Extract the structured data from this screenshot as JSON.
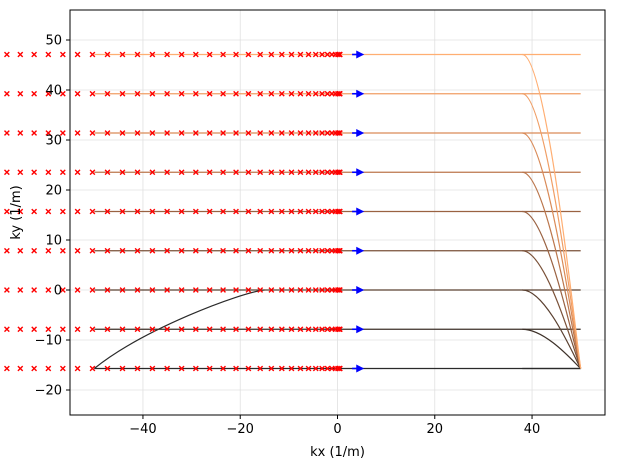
{
  "chart_data": {
    "type": "line",
    "xlabel": "kx (1/m)",
    "ylabel": "ky (1/m)",
    "xlim": [
      -55,
      55
    ],
    "ylim": [
      -25,
      56
    ],
    "x_ticks": [
      -40,
      -20,
      0,
      20,
      40
    ],
    "y_ticks": [
      -20,
      -10,
      0,
      10,
      20,
      30,
      40,
      50
    ],
    "grid": true,
    "line_ky": [
      -15.7,
      -7.85,
      0,
      7.85,
      15.7,
      23.55,
      31.4,
      39.25,
      47.1
    ],
    "line_colors": [
      "#2a2a2a",
      "#3d3129",
      "#5a4030",
      "#7a5138",
      "#9a6242",
      "#bb764c",
      "#d98a57",
      "#f09e65",
      "#ffae72"
    ],
    "kx_range": [
      -50,
      50
    ],
    "readout_kx_range": [
      -46,
      46.5
    ],
    "samples_per_line": 48,
    "sample_color": "#ff0000",
    "arrow_color": "#0000ff",
    "arrow_kx": [
      3,
      5.5
    ],
    "rampup_path": [
      [
        -50,
        -15.7
      ],
      [
        -40,
        -7.85
      ],
      [
        -20,
        -0.5
      ],
      [
        -15,
        0
      ]
    ],
    "rampdown_end_kx": 50,
    "rampdown_start_kx": 38
  }
}
